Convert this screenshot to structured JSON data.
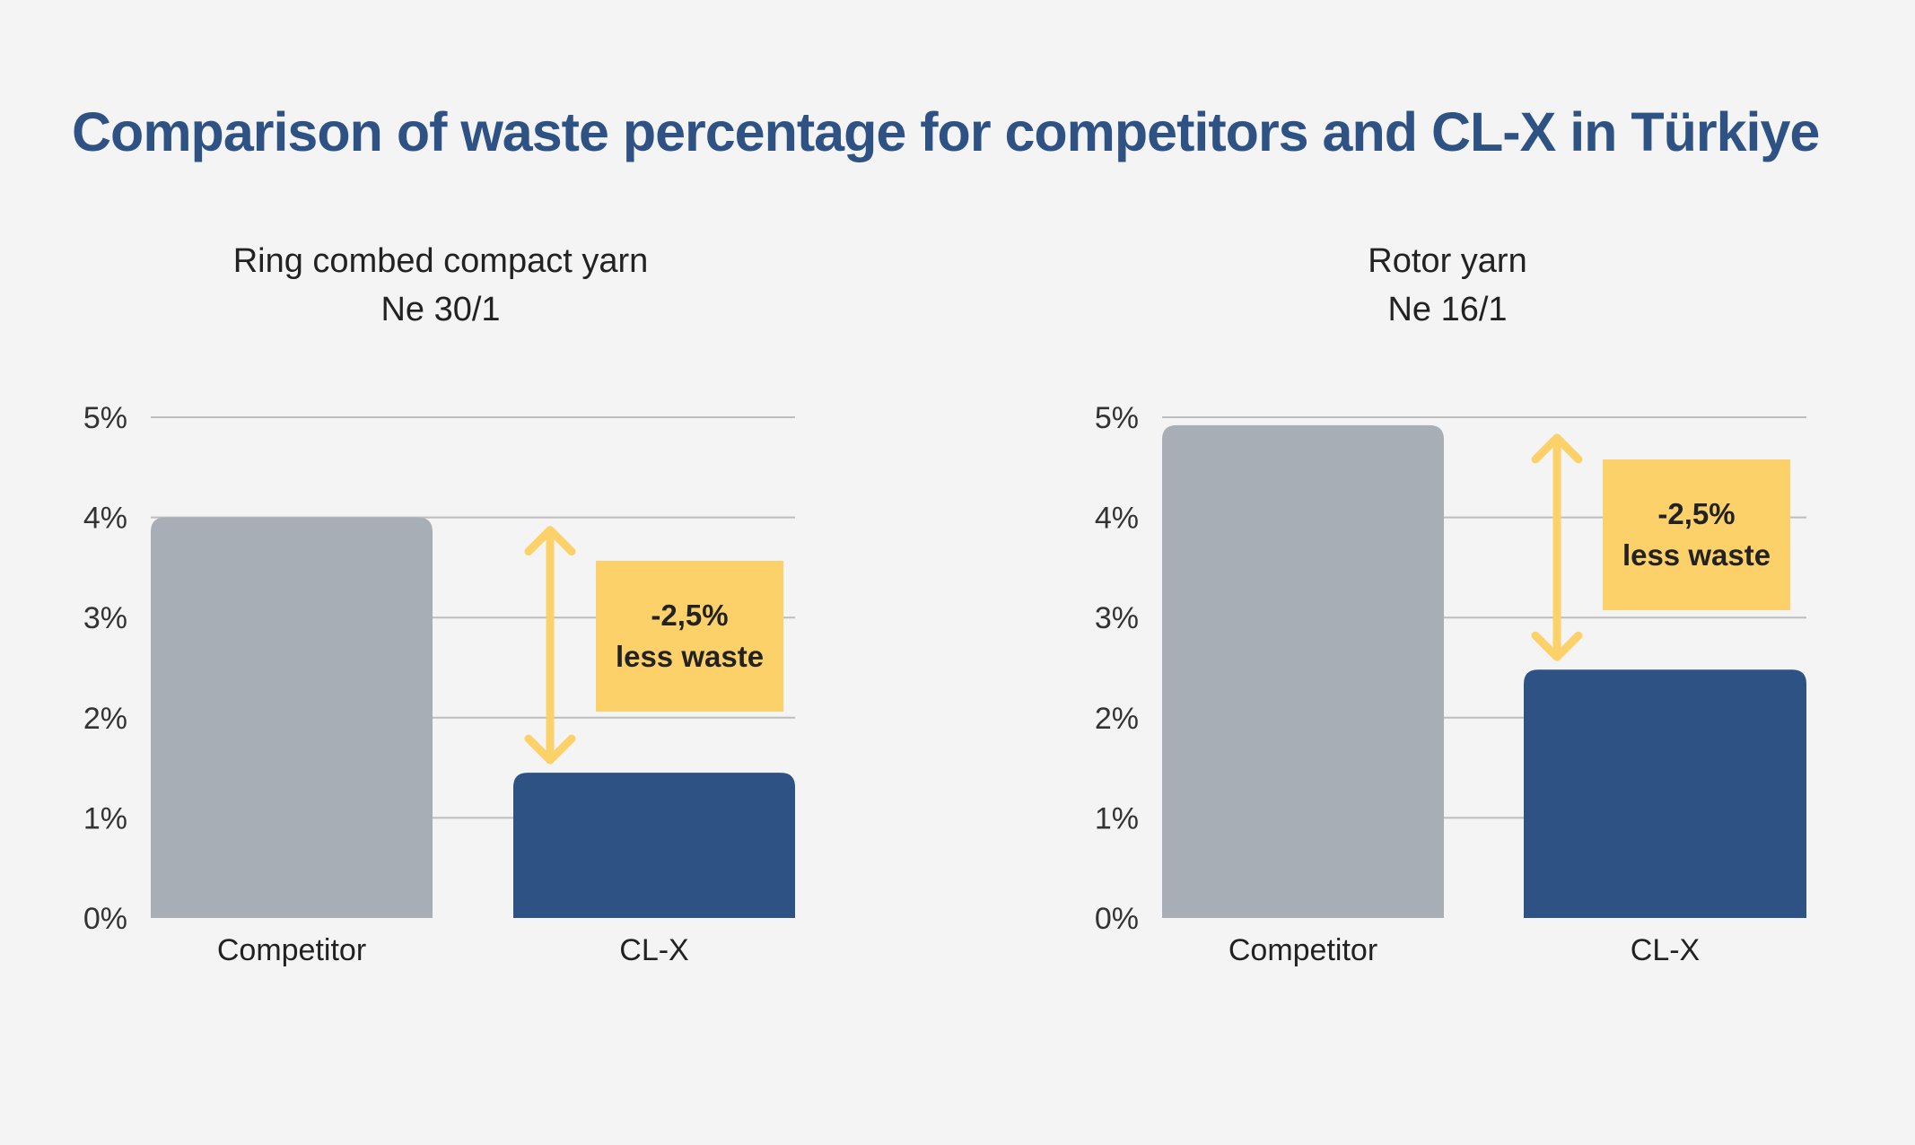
{
  "title": "Comparison of waste percentage for competitors and CL-X in Türkiye",
  "colors": {
    "title": "#2e5284",
    "competitor": "#a8aeb5",
    "clx": "#2e5284",
    "annotation": "#fdd16a",
    "grid": "#bdbdbd"
  },
  "chart_data": [
    {
      "type": "bar",
      "title_lines": [
        "Ring combed compact yarn",
        "Ne 30/1"
      ],
      "categories": [
        "Competitor",
        "CL-X"
      ],
      "values": [
        4.0,
        1.45
      ],
      "unit": "%",
      "ylim": [
        0,
        5
      ],
      "yticks": [
        "0%",
        "1%",
        "2%",
        "3%",
        "4%",
        "5%"
      ],
      "grid": true,
      "annotation": {
        "lines": [
          "-2,5%",
          "less waste"
        ]
      }
    },
    {
      "type": "bar",
      "title_lines": [
        "Rotor yarn",
        "Ne 16/1"
      ],
      "categories": [
        "Competitor",
        "CL-X"
      ],
      "values": [
        4.92,
        2.48
      ],
      "unit": "%",
      "ylim": [
        0,
        5
      ],
      "yticks": [
        "0%",
        "1%",
        "2%",
        "3%",
        "4%",
        "5%"
      ],
      "grid": true,
      "annotation": {
        "lines": [
          "-2,5%",
          "less waste"
        ]
      }
    }
  ]
}
